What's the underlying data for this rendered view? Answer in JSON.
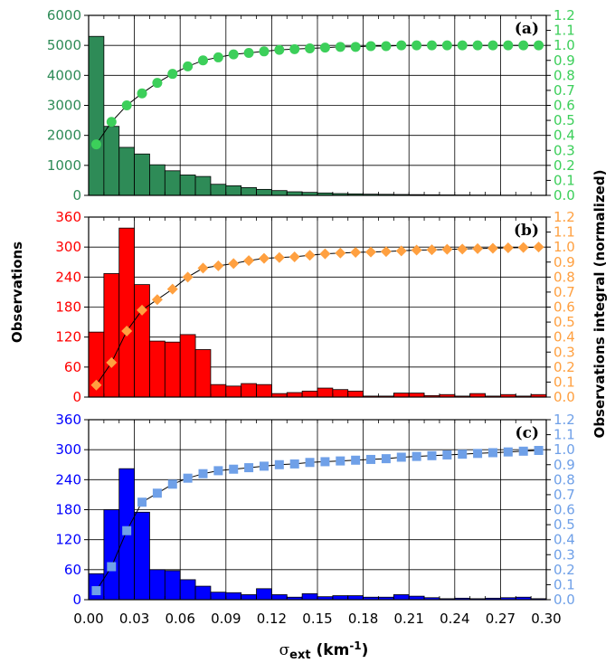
{
  "figure": {
    "ylabel_left": "Observations",
    "ylabel_right": "Observations integral (normalized)",
    "xlabel_main": "σ",
    "xlabel_sub": "ext",
    "xlabel_unit": " (km",
    "xlabel_exp": "-1",
    "xlabel_close": ")"
  },
  "chart_data": [
    {
      "type": "bar",
      "panel_label": "(a)",
      "bar_color": "#2e8b57",
      "marker": "circle",
      "marker_color": "#3ccf5a",
      "x_range": [
        0,
        0.3
      ],
      "x_ticks": [
        "0.00",
        "0.03",
        "0.06",
        "0.09",
        "0.12",
        "0.15",
        "0.18",
        "0.21",
        "0.24",
        "0.27",
        "0.30"
      ],
      "left_ylim": [
        0,
        6000
      ],
      "left_ticks": [
        "0",
        "1000",
        "2000",
        "3000",
        "4000",
        "5000",
        "6000"
      ],
      "right_ylim": [
        0,
        1.2
      ],
      "right_ticks": [
        "0.0",
        "0.1",
        "0.2",
        "0.3",
        "0.4",
        "0.5",
        "0.6",
        "0.7",
        "0.8",
        "0.9",
        "1.0",
        "1.1",
        "1.2"
      ],
      "bins": [
        0.005,
        0.015,
        0.025,
        0.035,
        0.045,
        0.055,
        0.065,
        0.075,
        0.085,
        0.095,
        0.105,
        0.115,
        0.125,
        0.135,
        0.145,
        0.155,
        0.165,
        0.175,
        0.185,
        0.195,
        0.205,
        0.215,
        0.225,
        0.235,
        0.245,
        0.255,
        0.265,
        0.275,
        0.285,
        0.295
      ],
      "counts": [
        5300,
        2300,
        1600,
        1380,
        1020,
        820,
        680,
        630,
        370,
        320,
        260,
        200,
        160,
        120,
        100,
        80,
        60,
        50,
        40,
        35,
        30,
        25,
        20,
        15,
        12,
        10,
        8,
        6,
        5,
        4
      ],
      "integral": [
        0.34,
        0.49,
        0.6,
        0.68,
        0.75,
        0.81,
        0.86,
        0.9,
        0.92,
        0.94,
        0.95,
        0.96,
        0.97,
        0.975,
        0.98,
        0.985,
        0.99,
        0.99,
        0.995,
        0.995,
        1.0,
        1.0,
        1.0,
        1.0,
        1.0,
        1.0,
        1.0,
        1.0,
        1.0,
        1.0
      ]
    },
    {
      "type": "bar",
      "panel_label": "(b)",
      "bar_color": "#ff0000",
      "marker": "diamond",
      "marker_color": "#ffa040",
      "x_range": [
        0,
        0.3
      ],
      "x_ticks": [
        "0.00",
        "0.03",
        "0.06",
        "0.09",
        "0.12",
        "0.15",
        "0.18",
        "0.21",
        "0.24",
        "0.27",
        "0.30"
      ],
      "left_ylim": [
        0,
        360
      ],
      "left_ticks": [
        "0",
        "60",
        "120",
        "180",
        "240",
        "300",
        "360"
      ],
      "right_ylim": [
        0,
        1.2
      ],
      "right_ticks": [
        "0.0",
        "0.1",
        "0.2",
        "0.3",
        "0.4",
        "0.5",
        "0.6",
        "0.7",
        "0.8",
        "0.9",
        "1.0",
        "1.1",
        "1.2"
      ],
      "bins": [
        0.005,
        0.015,
        0.025,
        0.035,
        0.045,
        0.055,
        0.065,
        0.075,
        0.085,
        0.095,
        0.105,
        0.115,
        0.125,
        0.135,
        0.145,
        0.155,
        0.165,
        0.175,
        0.185,
        0.195,
        0.205,
        0.215,
        0.225,
        0.235,
        0.245,
        0.255,
        0.265,
        0.275,
        0.285,
        0.295
      ],
      "counts": [
        130,
        247,
        338,
        225,
        112,
        110,
        125,
        95,
        25,
        22,
        27,
        25,
        7,
        9,
        12,
        18,
        15,
        12,
        2,
        2,
        8,
        8,
        3,
        5,
        2,
        7,
        2,
        5,
        2,
        5
      ],
      "integral": [
        0.08,
        0.23,
        0.44,
        0.58,
        0.65,
        0.72,
        0.8,
        0.86,
        0.875,
        0.89,
        0.91,
        0.925,
        0.93,
        0.935,
        0.945,
        0.955,
        0.96,
        0.965,
        0.967,
        0.97,
        0.975,
        0.98,
        0.982,
        0.985,
        0.987,
        0.99,
        0.992,
        0.995,
        0.997,
        1.0
      ]
    },
    {
      "type": "bar",
      "panel_label": "(c)",
      "bar_color": "#0000ff",
      "marker": "square",
      "marker_color": "#6fa0e8",
      "x_range": [
        0,
        0.3
      ],
      "x_ticks": [
        "0.00",
        "0.03",
        "0.06",
        "0.09",
        "0.12",
        "0.15",
        "0.18",
        "0.21",
        "0.24",
        "0.27",
        "0.30"
      ],
      "left_ylim": [
        0,
        360
      ],
      "left_ticks": [
        "0",
        "60",
        "120",
        "180",
        "240",
        "300",
        "360"
      ],
      "right_ylim": [
        0,
        1.2
      ],
      "right_ticks": [
        "0.0",
        "0.1",
        "0.2",
        "0.3",
        "0.4",
        "0.5",
        "0.6",
        "0.7",
        "0.8",
        "0.9",
        "1.0",
        "1.1",
        "1.2"
      ],
      "bins": [
        0.005,
        0.015,
        0.025,
        0.035,
        0.045,
        0.055,
        0.065,
        0.075,
        0.085,
        0.095,
        0.105,
        0.115,
        0.125,
        0.135,
        0.145,
        0.155,
        0.165,
        0.175,
        0.185,
        0.195,
        0.205,
        0.215,
        0.225,
        0.235,
        0.245,
        0.255,
        0.265,
        0.275,
        0.285,
        0.295
      ],
      "counts": [
        52,
        180,
        262,
        175,
        60,
        58,
        40,
        27,
        15,
        14,
        10,
        22,
        10,
        5,
        12,
        6,
        8,
        8,
        5,
        5,
        10,
        7,
        4,
        2,
        3,
        2,
        3,
        4,
        5,
        2
      ],
      "integral": [
        0.06,
        0.22,
        0.46,
        0.65,
        0.71,
        0.77,
        0.81,
        0.84,
        0.86,
        0.87,
        0.88,
        0.89,
        0.9,
        0.905,
        0.915,
        0.92,
        0.925,
        0.93,
        0.935,
        0.94,
        0.95,
        0.955,
        0.96,
        0.965,
        0.97,
        0.975,
        0.98,
        0.985,
        0.99,
        0.995
      ]
    }
  ]
}
